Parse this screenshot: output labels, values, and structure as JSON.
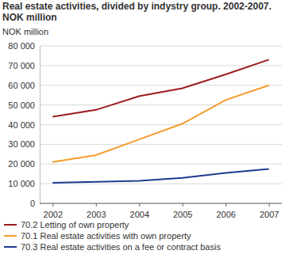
{
  "chart_data": {
    "type": "line",
    "title": "Real estate activities, divided by indystry group. 2002-2007. NOK million",
    "y_label": "NOK million",
    "categories": [
      "2002",
      "2003",
      "2004",
      "2005",
      "2006",
      "2007"
    ],
    "series": [
      {
        "name": "70.2 Letting of own property",
        "color": "#9b1c20",
        "values": [
          44000,
          47500,
          54500,
          58500,
          65500,
          73000
        ]
      },
      {
        "name": "70.1 Real estate activities with own property",
        "color": "#f39c2b",
        "values": [
          21000,
          24500,
          32500,
          40500,
          52500,
          60000
        ]
      },
      {
        "name": "70.3 Real estate activities on a fee or contract basis",
        "color": "#1f3a8f",
        "values": [
          10500,
          11000,
          11500,
          13000,
          15500,
          17500
        ]
      }
    ],
    "ylim": [
      0,
      80000
    ],
    "yticks": [
      0,
      {
        "value": 10000,
        "label": "10 000"
      },
      {
        "value": 20000,
        "label": "20 000"
      },
      {
        "value": 30000,
        "label": "30 000"
      },
      {
        "value": 40000,
        "label": "40 000"
      },
      {
        "value": 50000,
        "label": "50 000"
      },
      {
        "value": 60000,
        "label": "60 000"
      },
      {
        "value": 70000,
        "label": "70 000"
      },
      {
        "value": 80000,
        "label": "80 000"
      }
    ],
    "grid": true,
    "legend": "bottom"
  }
}
